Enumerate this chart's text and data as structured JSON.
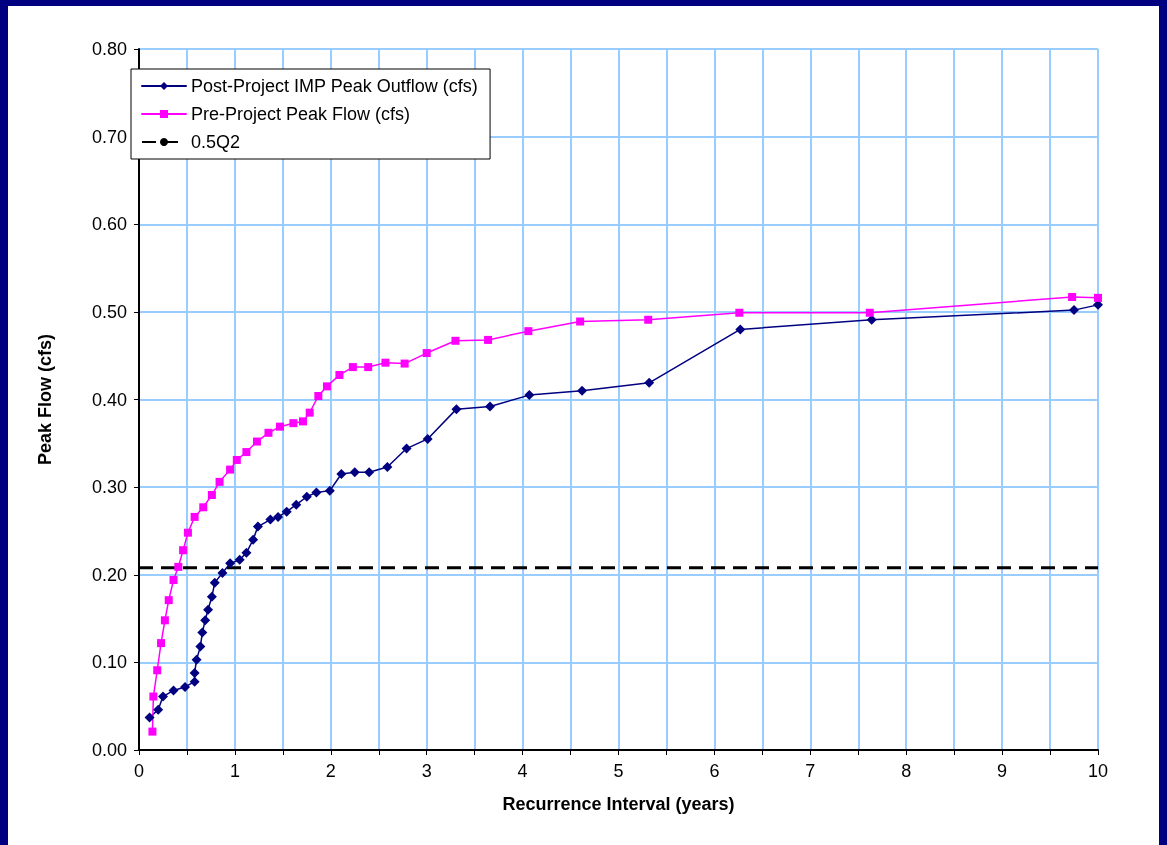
{
  "chart_data": {
    "type": "line",
    "xlabel": "Recurrence Interval (years)",
    "ylabel": "Peak Flow (cfs)",
    "xlim": [
      0,
      10
    ],
    "ylim": [
      0,
      0.8
    ],
    "xticks": [
      0,
      {
        "value": 0.5,
        "label": null
      },
      1,
      {
        "value": 1.5,
        "label": null
      },
      2,
      {
        "value": 2.5,
        "label": null
      },
      3,
      {
        "value": 3.5,
        "label": null
      },
      4,
      {
        "value": 4.5,
        "label": null
      },
      5,
      {
        "value": 5.5,
        "label": null
      },
      6,
      {
        "value": 6.5,
        "label": null
      },
      7,
      {
        "value": 7.5,
        "label": null
      },
      8,
      {
        "value": 8.5,
        "label": null
      },
      9,
      {
        "value": 9.5,
        "label": null
      },
      10
    ],
    "yticks": [
      {
        "value": 0,
        "label": "0.00"
      },
      {
        "value": 0.1,
        "label": "0.10"
      },
      {
        "value": 0.2,
        "label": "0.20"
      },
      {
        "value": 0.3,
        "label": "0.30"
      },
      {
        "value": 0.4,
        "label": "0.40"
      },
      {
        "value": 0.5,
        "label": "0.50"
      },
      {
        "value": 0.6,
        "label": "0.60"
      },
      {
        "value": 0.7,
        "label": "0.70"
      },
      {
        "value": 0.8,
        "label": "0.80"
      }
    ],
    "grid": true,
    "legend": "top left",
    "line_style": "solid",
    "series": [
      {
        "name": "Post-Project IMP Peak Outflow (cfs)",
        "color": "#000080",
        "marker": "diamond",
        "x": [
          0.11,
          0.2,
          0.25,
          0.36,
          0.48,
          0.58,
          0.58,
          0.6,
          0.64,
          0.66,
          0.69,
          0.72,
          0.76,
          0.79,
          0.87,
          0.95,
          1.05,
          1.12,
          1.19,
          1.24,
          1.37,
          1.45,
          1.54,
          1.64,
          1.75,
          1.85,
          1.99,
          2.11,
          2.25,
          2.4,
          2.59,
          2.79,
          3.01,
          3.31,
          3.66,
          4.07,
          4.62,
          5.32,
          6.27,
          7.64,
          9.75,
          10
        ],
        "values": [
          0.037,
          0.046,
          0.061,
          0.068,
          0.072,
          0.078,
          0.088,
          0.103,
          0.118,
          0.134,
          0.148,
          0.16,
          0.175,
          0.191,
          0.202,
          0.213,
          0.217,
          0.225,
          0.24,
          0.255,
          0.263,
          0.266,
          0.272,
          0.28,
          0.289,
          0.294,
          0.296,
          0.315,
          0.317,
          0.317,
          0.323,
          0.344,
          0.355,
          0.389,
          0.392,
          0.405,
          0.41,
          0.419,
          0.48,
          0.491,
          0.502,
          0.508
        ]
      },
      {
        "name": "Pre-Project Peak Flow (cfs)",
        "color": "#ff00ff",
        "marker": "square",
        "x": [
          0.14,
          0.15,
          0.19,
          0.23,
          0.27,
          0.31,
          0.36,
          0.41,
          0.46,
          0.51,
          0.58,
          0.67,
          0.76,
          0.84,
          0.95,
          1.02,
          1.12,
          1.23,
          1.35,
          1.47,
          1.61,
          1.71,
          1.78,
          1.87,
          1.96,
          2.09,
          2.23,
          2.39,
          2.57,
          2.77,
          3.0,
          3.3,
          3.64,
          4.06,
          4.6,
          5.31,
          6.26,
          7.62,
          9.73,
          10
        ],
        "values": [
          0.021,
          0.061,
          0.091,
          0.122,
          0.148,
          0.171,
          0.194,
          0.209,
          0.228,
          0.248,
          0.266,
          0.277,
          0.291,
          0.306,
          0.32,
          0.331,
          0.34,
          0.352,
          0.362,
          0.369,
          0.373,
          0.375,
          0.385,
          0.404,
          0.415,
          0.428,
          0.437,
          0.437,
          0.442,
          0.441,
          0.453,
          0.467,
          0.468,
          0.478,
          0.489,
          0.491,
          0.499,
          0.499,
          0.517,
          0.516
        ]
      }
    ],
    "ref_lines": [
      {
        "axis": "y",
        "value": 0.208,
        "label": "0.5Q2",
        "color": "#000000",
        "line_style": "dashed"
      }
    ]
  }
}
